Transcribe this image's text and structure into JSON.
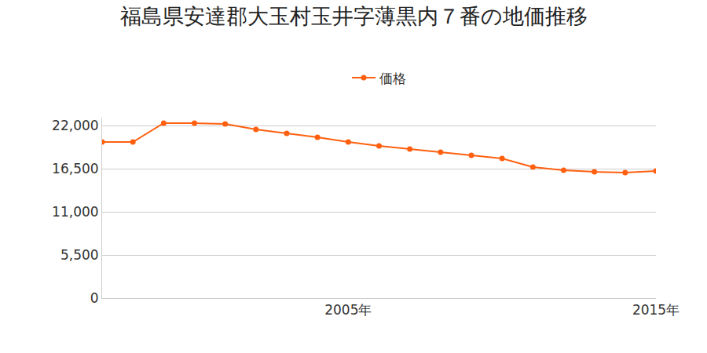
{
  "chart_data": {
    "type": "line",
    "title": "福島県安達郡大玉村玉井字薄黒内７番の地価推移",
    "x": [
      1997,
      1998,
      1999,
      2000,
      2001,
      2002,
      2003,
      2004,
      2005,
      2006,
      2007,
      2008,
      2009,
      2010,
      2011,
      2012,
      2013,
      2014,
      2015
    ],
    "series": [
      {
        "name": "価格",
        "color": "#ff6010",
        "values": [
          19900,
          19900,
          22300,
          22300,
          22200,
          21500,
          21000,
          20500,
          19900,
          19400,
          19000,
          18600,
          18200,
          17800,
          16700,
          16300,
          16100,
          16000,
          16200
        ]
      }
    ],
    "xlim": [
      1997,
      2015
    ],
    "xticks": [
      {
        "value": 2005,
        "label": "2005年"
      },
      {
        "value": 2015,
        "label": "2015年"
      }
    ],
    "ylim": [
      0,
      23000
    ],
    "yticks": [
      0,
      {
        "value": 5500,
        "label": "5,500"
      },
      {
        "value": 11000,
        "label": "11,000"
      },
      {
        "value": 16500,
        "label": "16,500"
      },
      {
        "value": 22000,
        "label": "22,000"
      }
    ],
    "grid": true,
    "legend": "top",
    "marker": "circle",
    "line_style": "solid"
  }
}
